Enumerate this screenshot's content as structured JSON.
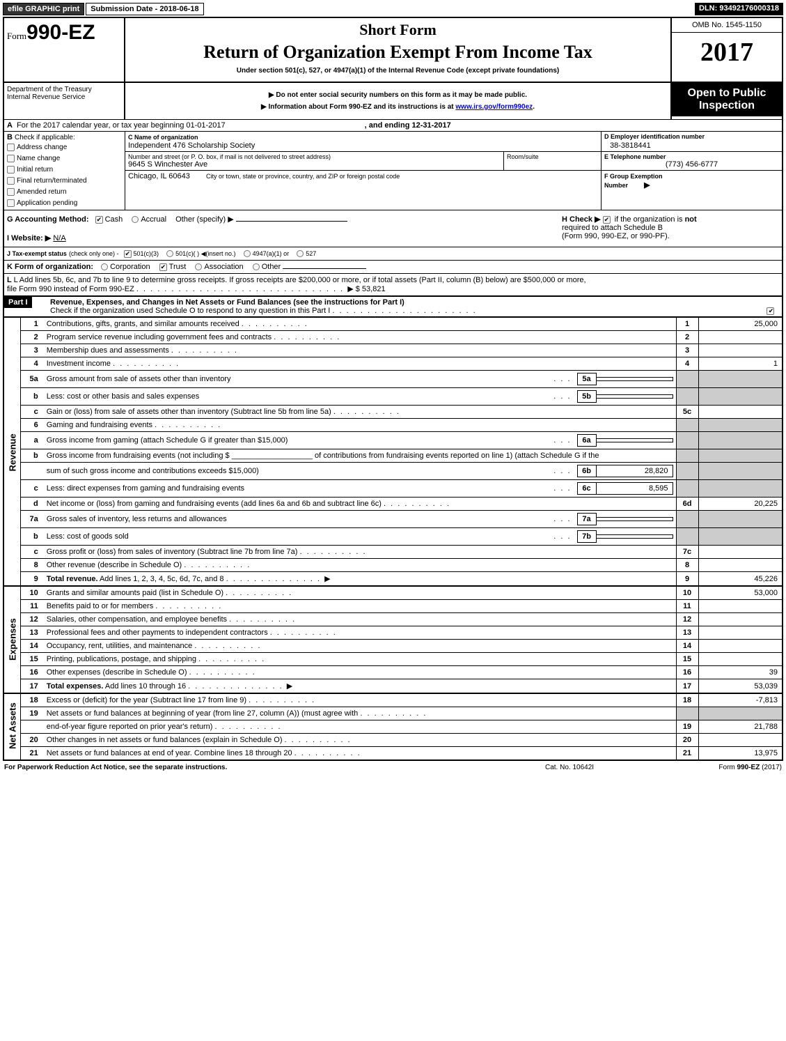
{
  "topbar": {
    "efile_btn": "efile GRAPHIC print",
    "submission_label": "Submission Date - 2018-06-18",
    "dln": "DLN: 93492176000318"
  },
  "header": {
    "form_prefix": "Form",
    "form_number": "990-EZ",
    "dept1": "Department of the Treasury",
    "dept2": "Internal Revenue Service",
    "short_form": "Short Form",
    "title": "Return of Organization Exempt From Income Tax",
    "under_section": "Under section 501(c), 527, or 4947(a)(1) of the Internal Revenue Code (except private foundations)",
    "note1": "▶ Do not enter social security numbers on this form as it may be made public.",
    "note2_pre": "▶ Information about Form 990-EZ and its instructions is at ",
    "note2_link": "www.irs.gov/form990ez",
    "note2_post": ".",
    "omb": "OMB No. 1545-1150",
    "year": "2017",
    "open1": "Open to Public",
    "open2": "Inspection"
  },
  "sectionA": {
    "line_a": "For the 2017 calendar year, or tax year beginning 01-01-2017",
    "ending": ", and ending 12-31-2017",
    "b_label": "Check if applicable:",
    "b_items": [
      "Address change",
      "Name change",
      "Initial return",
      "Final return/terminated",
      "Amended return",
      "Application pending"
    ],
    "c_label": "C Name of organization",
    "c_value": "Independent 476 Scholarship Society",
    "street_label": "Number and street (or P. O. box, if mail is not delivered to street address)",
    "street_value": "9645 S Winchester Ave",
    "room_label": "Room/suite",
    "city_label": "City or town, state or province, country, and ZIP or foreign postal code",
    "city_value": "Chicago, IL  60643",
    "d_label": "D Employer identification number",
    "d_value": "38-3818441",
    "e_label": "E Telephone number",
    "e_value": "(773) 456-6777",
    "f_label": "F Group Exemption",
    "f_label2": "Number",
    "f_arrow": "▶",
    "g_label": "G Accounting Method:",
    "g_opts": [
      "Cash",
      "Accrual",
      "Other (specify) ▶"
    ],
    "h_label": "H   Check ▶",
    "h_text1": "if the organization is",
    "h_not": "not",
    "h_text2": "required to attach Schedule B",
    "h_text3": "(Form 990, 990-EZ, or 990-PF).",
    "i_label": "I Website: ▶",
    "i_value": "N/A",
    "j_label": "J Tax-exempt status",
    "j_sub": "(check only one) -",
    "j_opts": [
      "501(c)(3)",
      "501(c)(  ) ◀(insert no.)",
      "4947(a)(1) or",
      "527"
    ],
    "k_label": "K Form of organization:",
    "k_opts": [
      "Corporation",
      "Trust",
      "Association",
      "Other"
    ],
    "l_text1": "L Add lines 5b, 6c, and 7b to line 9 to determine gross receipts. If gross receipts are $200,000 or more, or if total assets (Part II, column (B) below) are $500,000 or more,",
    "l_text2": "file Form 990 instead of Form 990-EZ",
    "l_amount": "▶ $ 53,821"
  },
  "part1": {
    "header_label": "Part I",
    "header_text": "Revenue, Expenses, and Changes in Net Assets or Fund Balances (see the instructions for Part I)",
    "check_text": "Check if the organization used Schedule O to respond to any question in this Part I",
    "side_labels": {
      "revenue": "Revenue",
      "expenses": "Expenses",
      "netassets": "Net Assets"
    },
    "rows": [
      {
        "n": "1",
        "desc": "Contributions, gifts, grants, and similar amounts received",
        "box": "1",
        "val": "25,000"
      },
      {
        "n": "2",
        "desc": "Program service revenue including government fees and contracts",
        "box": "2",
        "val": ""
      },
      {
        "n": "3",
        "desc": "Membership dues and assessments",
        "box": "3",
        "val": ""
      },
      {
        "n": "4",
        "desc": "Investment income",
        "box": "4",
        "val": "1"
      },
      {
        "n": "5a",
        "desc": "Gross amount from sale of assets other than inventory",
        "mini": "5a",
        "minival": "",
        "shade": true
      },
      {
        "n": "b",
        "sub": true,
        "desc": "Less: cost or other basis and sales expenses",
        "mini": "5b",
        "minival": "",
        "shade": true
      },
      {
        "n": "c",
        "sub": true,
        "desc": "Gain or (loss) from sale of assets other than inventory (Subtract line 5b from line 5a)",
        "box": "5c",
        "val": ""
      },
      {
        "n": "6",
        "desc": "Gaming and fundraising events",
        "shade": true,
        "noval": true
      },
      {
        "n": "a",
        "sub": true,
        "desc": "Gross income from gaming (attach Schedule G if greater than $15,000)",
        "mini": "6a",
        "minival": "",
        "shade": true
      },
      {
        "n": "b",
        "sub": true,
        "desc_html": "Gross income from fundraising events (not including $ ___________________ of contributions from fundraising events reported on line 1) (attach Schedule G if the",
        "shade": true,
        "noval": true,
        "twoLine": true
      },
      {
        "n": "",
        "desc": "sum of such gross income and contributions exceeds $15,000)",
        "mini": "6b",
        "minival": "28,820",
        "shade": true
      },
      {
        "n": "c",
        "sub": true,
        "desc": "Less: direct expenses from gaming and fundraising events",
        "mini": "6c",
        "minival": "8,595",
        "shade": true
      },
      {
        "n": "d",
        "sub": true,
        "desc": "Net income or (loss) from gaming and fundraising events (add lines 6a and 6b and subtract line 6c)",
        "box": "6d",
        "val": "20,225"
      },
      {
        "n": "7a",
        "desc": "Gross sales of inventory, less returns and allowances",
        "mini": "7a",
        "minival": "",
        "shade": true
      },
      {
        "n": "b",
        "sub": true,
        "desc": "Less: cost of goods sold",
        "mini": "7b",
        "minival": "",
        "shade": true
      },
      {
        "n": "c",
        "sub": true,
        "desc": "Gross profit or (loss) from sales of inventory (Subtract line 7b from line 7a)",
        "box": "7c",
        "val": ""
      },
      {
        "n": "8",
        "desc": "Other revenue (describe in Schedule O)",
        "box": "8",
        "val": ""
      },
      {
        "n": "9",
        "desc_bold": "Total revenue.",
        "desc": " Add lines 1, 2, 3, 4, 5c, 6d, 7c, and 8",
        "box": "9",
        "val": "45,226",
        "arrow": true
      },
      {
        "n": "10",
        "desc": "Grants and similar amounts paid (list in Schedule O)",
        "box": "10",
        "val": "53,000"
      },
      {
        "n": "11",
        "desc": "Benefits paid to or for members",
        "box": "11",
        "val": ""
      },
      {
        "n": "12",
        "desc": "Salaries, other compensation, and employee benefits",
        "box": "12",
        "val": ""
      },
      {
        "n": "13",
        "desc": "Professional fees and other payments to independent contractors",
        "box": "13",
        "val": ""
      },
      {
        "n": "14",
        "desc": "Occupancy, rent, utilities, and maintenance",
        "box": "14",
        "val": ""
      },
      {
        "n": "15",
        "desc": "Printing, publications, postage, and shipping",
        "box": "15",
        "val": ""
      },
      {
        "n": "16",
        "desc": "Other expenses (describe in Schedule O)",
        "box": "16",
        "val": "39"
      },
      {
        "n": "17",
        "desc_bold": "Total expenses.",
        "desc": " Add lines 10 through 16",
        "box": "17",
        "val": "53,039",
        "arrow": true
      },
      {
        "n": "18",
        "desc": "Excess or (deficit) for the year (Subtract line 17 from line 9)",
        "box": "18",
        "val": "-7,813"
      },
      {
        "n": "19",
        "desc": "Net assets or fund balances at beginning of year (from line 27, column (A)) (must agree with",
        "shade": true,
        "noval": true
      },
      {
        "n": "",
        "desc": "end-of-year figure reported on prior year's return)",
        "box": "19",
        "val": "21,788"
      },
      {
        "n": "20",
        "desc": "Other changes in net assets or fund balances (explain in Schedule O)",
        "box": "20",
        "val": ""
      },
      {
        "n": "21",
        "desc": "Net assets or fund balances at end of year. Combine lines 18 through 20",
        "box": "21",
        "val": "13,975"
      }
    ]
  },
  "footer": {
    "left": "For Paperwork Reduction Act Notice, see the separate instructions.",
    "mid": "Cat. No. 10642I",
    "right_pre": "Form ",
    "right_bold": "990-EZ",
    "right_post": " (2017)"
  },
  "colors": {
    "black": "#000000",
    "shade": "#cccccc",
    "link": "#0000ee"
  }
}
